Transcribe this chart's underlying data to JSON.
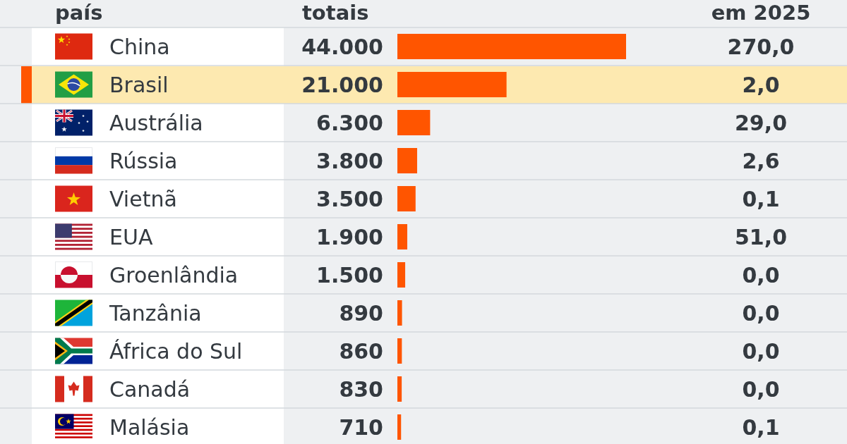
{
  "chart_data": [
    {
      "type": "bar",
      "orientation": "horizontal",
      "ylabel": "país",
      "categories": [
        "China",
        "Brasil",
        "Austrália",
        "Rússia",
        "Vietnã",
        "EUA",
        "Groenlândia",
        "Tanzânia",
        "África do Sul",
        "Canadá",
        "Malásia"
      ],
      "series": [
        {
          "name": "totais",
          "color": "#ff5500",
          "values": [
            44000,
            21000,
            6300,
            3800,
            3500,
            1900,
            1500,
            890,
            860,
            830,
            710
          ],
          "value_labels": [
            "44.000",
            "21.000",
            "6.300",
            "3.800",
            "3.500",
            "1.900",
            "1.500",
            "890",
            "860",
            "830",
            "710"
          ]
        }
      ],
      "bands": [
        {
          "axis": "y",
          "from": "Brasil",
          "to": "Brasil",
          "color": "#fde9b0"
        }
      ]
    },
    {
      "type": "other",
      "title": "em 2025",
      "annotations": [
        "270,0",
        "2,0",
        "29,0",
        "2,6",
        "0,1",
        "51,0",
        "0,0",
        "0,0",
        "0,0",
        "0,0",
        "0,1"
      ]
    }
  ]
}
